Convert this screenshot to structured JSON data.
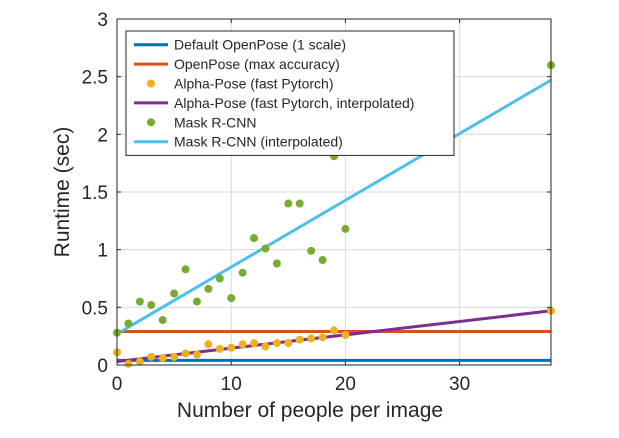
{
  "chart_data": {
    "type": "scatter",
    "xlabel": "Number of people per image",
    "ylabel": "Runtime (sec)",
    "xlim": [
      0,
      38
    ],
    "ylim": [
      0,
      3
    ],
    "xticks": [
      0,
      10,
      20,
      30
    ],
    "yticks": [
      0,
      0.5,
      1,
      1.5,
      2,
      2.5,
      3
    ],
    "xtick_labels": [
      "0",
      "10",
      "20",
      "30"
    ],
    "ytick_labels": [
      "0",
      "0.5",
      "1",
      "1.5",
      "2",
      "2.5",
      "3"
    ],
    "grid": true,
    "legend_position": "top",
    "series": [
      {
        "name": "Default OpenPose (1 scale)",
        "kind": "line",
        "color": "#0072bd",
        "x": [
          0,
          38
        ],
        "y": [
          0.04,
          0.04
        ]
      },
      {
        "name": "OpenPose (max accuracy)",
        "kind": "line",
        "color": "#d95319",
        "x": [
          0,
          38
        ],
        "y": [
          0.29,
          0.29
        ]
      },
      {
        "name": "Alpha-Pose (fast Pytorch)",
        "kind": "scatter",
        "color": "#edb120",
        "x": [
          0,
          1,
          2,
          3,
          4,
          5,
          6,
          7,
          8,
          9,
          10,
          11,
          12,
          13,
          14,
          15,
          16,
          17,
          18,
          19,
          20,
          38
        ],
        "y": [
          0.11,
          0.01,
          0.03,
          0.07,
          0.06,
          0.07,
          0.1,
          0.09,
          0.18,
          0.14,
          0.15,
          0.18,
          0.19,
          0.16,
          0.19,
          0.19,
          0.22,
          0.23,
          0.24,
          0.3,
          0.26,
          0.47
        ]
      },
      {
        "name": "Alpha-Pose (fast Pytorch, interpolated)",
        "kind": "line",
        "color": "#7e2f8e",
        "x": [
          0,
          38
        ],
        "y": [
          0.03,
          0.47
        ]
      },
      {
        "name": "Mask R-CNN",
        "kind": "scatter",
        "color": "#77ac30",
        "x": [
          0,
          1,
          2,
          3,
          4,
          5,
          6,
          7,
          8,
          9,
          10,
          11,
          12,
          13,
          14,
          15,
          16,
          17,
          18,
          19,
          20,
          38
        ],
        "y": [
          0.28,
          0.36,
          0.55,
          0.52,
          0.39,
          0.62,
          0.83,
          0.55,
          0.66,
          0.75,
          0.58,
          0.8,
          1.1,
          1.01,
          0.88,
          1.4,
          1.4,
          0.99,
          0.91,
          1.81,
          1.18,
          2.6
        ]
      },
      {
        "name": "Mask R-CNN (interpolated)",
        "kind": "line",
        "color": "#4dbeee",
        "x": [
          0,
          38
        ],
        "y": [
          0.27,
          2.47
        ]
      }
    ]
  }
}
